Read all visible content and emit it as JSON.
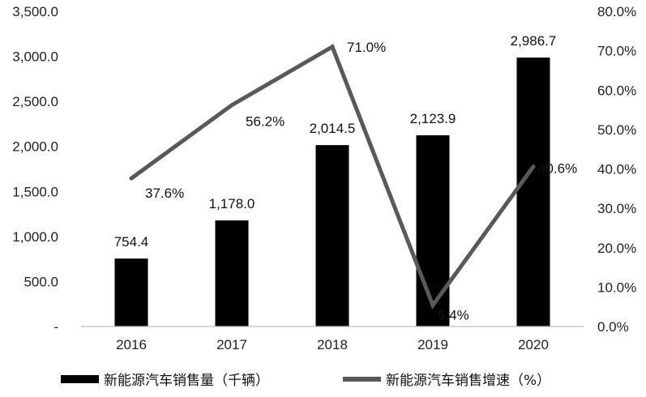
{
  "chart_data": {
    "type": "bar",
    "categories": [
      "2016",
      "2017",
      "2018",
      "2019",
      "2020"
    ],
    "series": [
      {
        "name": "新能源汽车销售量（千辆）",
        "type": "bar",
        "axis": "left",
        "values": [
          754.4,
          1178.0,
          2014.5,
          2123.9,
          2986.7
        ],
        "labels": [
          "754.4",
          "1,178.0",
          "2,014.5",
          "2,123.9",
          "2,986.7"
        ],
        "color": "#000000"
      },
      {
        "name": "新能源汽车销售增速（%）",
        "type": "line",
        "axis": "right",
        "values": [
          37.6,
          56.2,
          71.0,
          5.4,
          40.6
        ],
        "labels": [
          "37.6%",
          "56.2%",
          "71.0%",
          "5.4%",
          "40.6%"
        ],
        "color": "#595959"
      }
    ],
    "y_left": {
      "ylim": [
        0,
        3500
      ],
      "ticks": [
        0,
        500,
        1000,
        1500,
        2000,
        2500,
        3000,
        3500
      ],
      "tick_labels": [
        "-",
        "500.0",
        "1,000.0",
        "1,500.0",
        "2,000.0",
        "2,500.0",
        "3,000.0",
        "3,500.0"
      ]
    },
    "y_right": {
      "ylim": [
        0,
        80
      ],
      "ticks": [
        0,
        10,
        20,
        30,
        40,
        50,
        60,
        70,
        80
      ],
      "tick_labels": [
        "0.0%",
        "10.0%",
        "20.0%",
        "30.0%",
        "40.0%",
        "50.0%",
        "60.0%",
        "70.0%",
        "80.0%"
      ]
    },
    "title": "",
    "xlabel": "",
    "grid": false,
    "legend": "bottom"
  }
}
